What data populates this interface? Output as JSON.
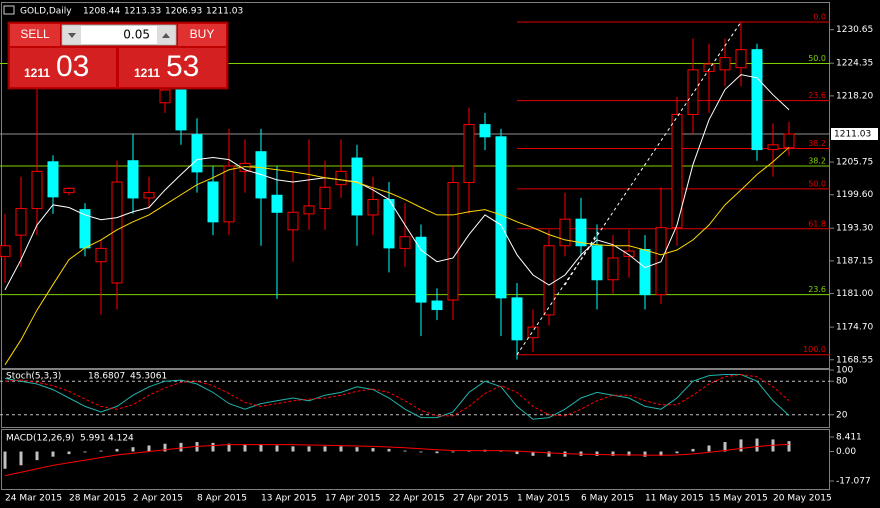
{
  "window": {
    "symbol": "GOLD,Daily",
    "open": 1208.44,
    "high": 1213.33,
    "low": 1206.93,
    "close": 1211.03
  },
  "trade_panel": {
    "sell": "SELL",
    "buy": "BUY",
    "lots": "0.05",
    "bid_big": "1211",
    "bid_small": "03",
    "ask_big": "1211",
    "ask_small": "53"
  },
  "chart_data": [
    {
      "type": "candlestick",
      "categories": [
        "24 Mar 2015",
        null,
        null,
        null,
        "28 Mar 2015",
        null,
        null,
        null,
        "2 Apr 2015",
        null,
        null,
        null,
        "8 Apr 2015",
        null,
        null,
        null,
        "13 Apr 2015",
        null,
        null,
        null,
        "17 Apr 2015",
        null,
        null,
        null,
        "22 Apr 2015",
        null,
        null,
        null,
        "27 Apr 2015",
        null,
        null,
        null,
        "1 May 2015",
        null,
        null,
        null,
        "6 May 2015",
        null,
        null,
        null,
        "11 May 2015",
        null,
        null,
        null,
        "15 May 2015",
        null,
        null,
        null,
        "20 May 2015",
        null
      ],
      "open": [
        1188,
        1192,
        1197,
        1205.8,
        1200,
        1196.8,
        1187,
        1183,
        1206,
        1199,
        1216.9,
        1219.7,
        1210.9,
        1202,
        1194.5,
        1204,
        1207.7,
        1199.5,
        1193,
        1196,
        1197,
        1201.5,
        1206.5,
        1195.8,
        1198.7,
        1189.5,
        1191.6,
        1179.6,
        1179.8,
        1201.9,
        1212.8,
        1210.5,
        1180.2,
        1172.7,
        1177,
        1190,
        1195,
        1190,
        1183.6,
        1188,
        1189.3,
        1180.8,
        1193.4,
        1214.7,
        1222.8,
        1223.1,
        1223.5,
        1226.9,
        1208.1,
        1208.44
      ],
      "high": [
        1196,
        1203,
        1221,
        1207,
        1201,
        1198,
        1191,
        1206,
        1211,
        1203,
        1222,
        1222,
        1214,
        1205,
        1212,
        1210,
        1212,
        1205,
        1204,
        1210,
        1206,
        1210,
        1209,
        1203,
        1202,
        1198,
        1194,
        1182,
        1205,
        1216,
        1215,
        1212,
        1183,
        1178,
        1193,
        1200,
        1199,
        1194,
        1192,
        1193,
        1192,
        1201,
        1218,
        1229,
        1228,
        1229,
        1232,
        1228,
        1213,
        1213.33
      ],
      "low": [
        1183,
        1186,
        1192,
        1196,
        1199.5,
        1188,
        1177,
        1178,
        1196,
        1197,
        1215,
        1209,
        1200,
        1192,
        1192,
        1200,
        1190,
        1180,
        1187,
        1193,
        1193,
        1199,
        1190,
        1192,
        1185,
        1186,
        1173,
        1176,
        1176,
        1196,
        1208,
        1173,
        1168.6,
        1170,
        1175,
        1188,
        1188,
        1178,
        1181,
        1184,
        1178,
        1179,
        1190,
        1211,
        1215,
        1220,
        1220,
        1206,
        1203,
        1206.93
      ],
      "close": [
        1190,
        1197,
        1204,
        1199.2,
        1200.8,
        1189.6,
        1189.5,
        1202,
        1199,
        1200,
        1219.3,
        1211.8,
        1203.9,
        1194.5,
        1205,
        1205.5,
        1199,
        1196.3,
        1196.3,
        1197.5,
        1201,
        1204,
        1195.8,
        1198.7,
        1189.6,
        1191.7,
        1179.4,
        1178,
        1201.9,
        1212.8,
        1210.5,
        1180.2,
        1172.3,
        1174.7,
        1190,
        1195,
        1190,
        1183.6,
        1187.7,
        1189,
        1180.8,
        1193.4,
        1214.7,
        1223.1,
        1224.2,
        1225.4,
        1226.9,
        1208.1,
        1209,
        1211.03
      ],
      "up_color": "#ff0000",
      "down_color": "#00ffff",
      "series": [
        {
          "color": "#ffffff",
          "values": [
            1181.7,
            1187.4,
            1193.9,
            1197.7,
            1197.2,
            1195.8,
            1194.9,
            1195.3,
            1196.4,
            1197.2,
            1200.5,
            1203.4,
            1206.2,
            1206.6,
            1206.2,
            1204.3,
            1203.4,
            1202.4,
            1202.0,
            1202.4,
            1202.8,
            1202.4,
            1202.0,
            1200.5,
            1198.7,
            1193.9,
            1189.2,
            1187.0,
            1187.7,
            1192.1,
            1195.8,
            1193.9,
            1188.3,
            1184.5,
            1182.6,
            1184.5,
            1188.3,
            1191.1,
            1190.2,
            1188.3,
            1185.9,
            1187.0,
            1193.9,
            1205.3,
            1213.7,
            1219.4,
            1222.2,
            1221.6,
            1218.4,
            1215.6
          ]
        },
        {
          "color": "#ffd700",
          "values": [
            1167.6,
            1172.3,
            1177.9,
            1182.7,
            1187.4,
            1189.6,
            1191.1,
            1193.0,
            1194.5,
            1195.8,
            1197.7,
            1199.6,
            1201.5,
            1202.8,
            1204.3,
            1204.9,
            1204.7,
            1204.3,
            1203.9,
            1203.4,
            1202.8,
            1202.4,
            1201.9,
            1200.9,
            1200.0,
            1198.7,
            1197.2,
            1195.8,
            1195.8,
            1196.4,
            1196.8,
            1195.8,
            1194.5,
            1193.4,
            1192.1,
            1191.1,
            1190.6,
            1190.2,
            1190.0,
            1190.0,
            1189.2,
            1188.3,
            1189.2,
            1191.1,
            1193.9,
            1197.7,
            1200.5,
            1203.4,
            1205.8,
            1208.5
          ]
        }
      ],
      "levels": [
        {
          "label": "0.0",
          "price": 1232.1,
          "color": "#e00000"
        },
        {
          "label": "23.6",
          "price": 1217.3,
          "color": "#e00000"
        },
        {
          "label": "38.2",
          "price": 1208.3,
          "color": "#e00000"
        },
        {
          "label": "50.0",
          "price": 1200.7,
          "color": "#e00000"
        },
        {
          "label": "61.8",
          "price": 1193.2,
          "color": "#e00000"
        },
        {
          "label": "100.0",
          "price": 1169.5,
          "color": "#e00000"
        },
        {
          "label": "50.0",
          "price": 1224.3,
          "color": "#7fd000"
        },
        {
          "label": "38.2",
          "price": 1205.0,
          "color": "#7fd000"
        },
        {
          "label": "23.6",
          "price": 1180.8,
          "color": "#7fd000"
        }
      ],
      "ylim": [
        1167.0,
        1235.3
      ],
      "yticks": [
        1230.65,
        1224.35,
        {
          "value": 1218.2,
          "label": "1218.20"
        },
        1205.75,
        {
          "value": 1199.6,
          "label": "1199.60"
        },
        {
          "value": 1193.3,
          "label": "1193.30"
        },
        1187.15,
        {
          "value": 1181.0,
          "label": "1181.00"
        },
        {
          "value": 1174.7,
          "label": "1174.70"
        },
        1168.55
      ]
    },
    {
      "type": "line",
      "title": "Stoch(5,3,3)",
      "series": [
        {
          "color": "#20b2aa",
          "dash": false,
          "values": [
            85,
            80,
            75,
            65,
            50,
            35,
            25,
            35,
            55,
            70,
            80,
            82,
            75,
            60,
            40,
            30,
            40,
            45,
            50,
            45,
            55,
            60,
            70,
            65,
            50,
            30,
            15,
            15,
            25,
            60,
            80,
            70,
            35,
            12,
            15,
            30,
            50,
            60,
            55,
            50,
            35,
            30,
            50,
            80,
            90,
            92,
            92,
            80,
            45,
            18.6807
          ]
        },
        {
          "color": "#ff0000",
          "dash": true,
          "values": [
            80,
            82,
            78,
            72,
            62,
            48,
            35,
            30,
            38,
            55,
            68,
            78,
            80,
            72,
            58,
            42,
            35,
            40,
            45,
            48,
            50,
            55,
            62,
            66,
            60,
            45,
            28,
            18,
            18,
            35,
            58,
            72,
            60,
            35,
            20,
            18,
            30,
            45,
            55,
            55,
            45,
            38,
            38,
            55,
            75,
            88,
            92,
            88,
            70,
            45.3061
          ]
        }
      ],
      "levels": [
        80,
        20
      ],
      "ylim": [
        0,
        100
      ],
      "yticks": [
        100,
        80,
        20
      ]
    },
    {
      "type": "macd",
      "title": "MACD(12,26,9)",
      "series": [
        {
          "kind": "bar",
          "color": "#c0c0c0",
          "values": [
            -10,
            -8,
            -5,
            -3,
            -1.5,
            -0.5,
            0.5,
            1.5,
            2.5,
            3.5,
            4.5,
            5,
            5.5,
            5,
            4.5,
            4,
            4,
            3.5,
            3,
            3,
            3,
            3,
            2.5,
            2,
            1.5,
            0.5,
            -0.5,
            -1,
            -0.5,
            0.5,
            1,
            0.5,
            -1.5,
            -2.5,
            -3,
            -3,
            -2.5,
            -2.5,
            -2.5,
            -2.5,
            -3,
            -2.5,
            -1,
            1.5,
            3.5,
            5.5,
            7,
            7.5,
            7,
            5.991
          ]
        },
        {
          "kind": "line",
          "color": "#ff0000",
          "values": [
            -14,
            -12,
            -10,
            -8,
            -6.5,
            -5,
            -3.5,
            -2,
            -1,
            0,
            1,
            2,
            3,
            3.5,
            4,
            4,
            4,
            4,
            4,
            3.8,
            3.6,
            3.4,
            3.2,
            3,
            2.6,
            2.2,
            1.6,
            1,
            0.6,
            0.5,
            0.5,
            0.5,
            0.2,
            -0.3,
            -0.8,
            -1.2,
            -1.5,
            -1.7,
            -1.9,
            -2,
            -2.1,
            -2.2,
            -2,
            -1.4,
            -0.5,
            0.6,
            1.8,
            2.9,
            3.6,
            4.124
          ]
        }
      ],
      "ylim": [
        -22.3,
        11.3
      ],
      "yticks": [
        8.411,
        {
          "value": 0,
          "label": "0.00"
        },
        -17.077
      ]
    }
  ]
}
